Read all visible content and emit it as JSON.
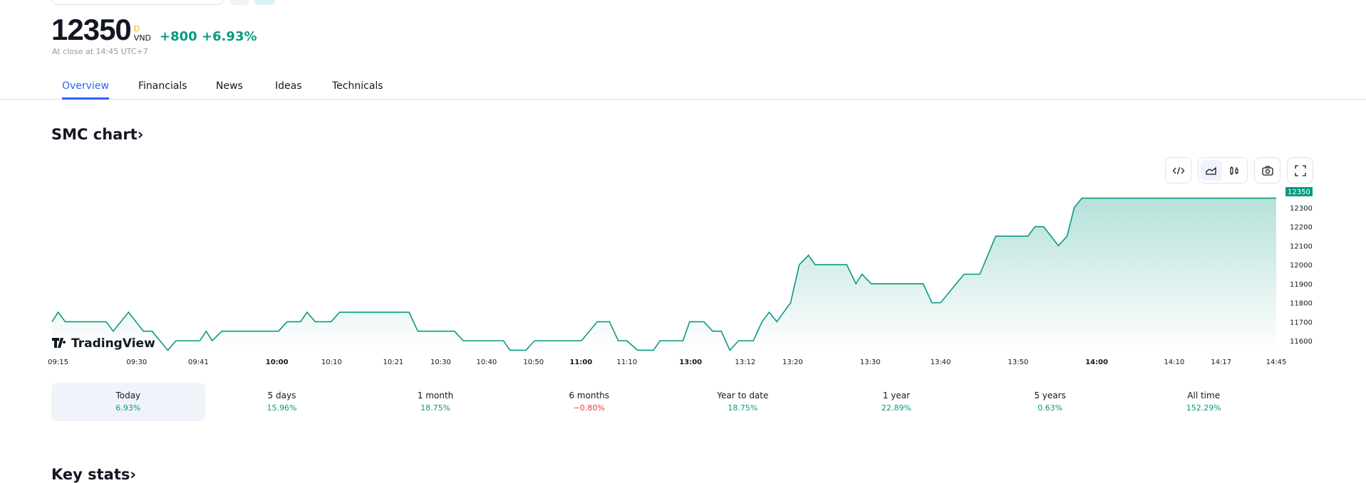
{
  "quote": {
    "price": "12350",
    "flag": "D",
    "currency": "VND",
    "change": "+800",
    "change_pct": "+6.93%",
    "status": "At close at 14:45 UTC+7"
  },
  "tabs": [
    {
      "label": "Overview",
      "active": true
    },
    {
      "label": "Financials"
    },
    {
      "label": "News"
    },
    {
      "label": "Ideas"
    },
    {
      "label": "Technicals"
    }
  ],
  "section_title": "SMC chart›",
  "toolbar": {
    "embed": "code-icon",
    "area": "area-chart-icon",
    "candles": "candlestick-icon",
    "snapshot": "camera-icon",
    "fullscreen": "fullscreen-icon"
  },
  "watermark": "TradingView",
  "colors": {
    "up": "#089981",
    "down": "#f23645",
    "accent": "#2962ff"
  },
  "chart_data": {
    "type": "area",
    "last_price_label": "12350",
    "y_ticks": [
      11600,
      11700,
      11800,
      11900,
      12000,
      12100,
      12200,
      12300
    ],
    "ylim": [
      11550,
      12350
    ],
    "xlim": [
      0,
      240
    ],
    "t": [
      0,
      1.2,
      2.6,
      10.6,
      12.0,
      15.0,
      17.9,
      19.6,
      22.7,
      24.3,
      29.0,
      30.2,
      31.4,
      33.3,
      44.4,
      46.1,
      48.7,
      50.0,
      51.6,
      54.7,
      56.4,
      70.0,
      71.7,
      78.9,
      80.6,
      88.5,
      89.8,
      92.9,
      94.6,
      103.8,
      106.9,
      109.3,
      111.0,
      112.7,
      114.8,
      117.9,
      119.2,
      123.7,
      125.0,
      127.8,
      129.5,
      131.2,
      132.9,
      134.6,
      137.5,
      139.2,
      140.6,
      142.1,
      144.8,
      146.5,
      148.3,
      149.6,
      155.8,
      157.6,
      158.8,
      160.6,
      170.8,
      172.5,
      174.2,
      178.8,
      181.9,
      185.0,
      191.3,
      192.7,
      194.4,
      197.3,
      199.0,
      200.4,
      201.9,
      240
    ],
    "price": [
      11700,
      11750,
      11700,
      11700,
      11650,
      11750,
      11650,
      11650,
      11550,
      11600,
      11600,
      11650,
      11600,
      11650,
      11650,
      11700,
      11700,
      11750,
      11700,
      11700,
      11750,
      11750,
      11650,
      11650,
      11600,
      11600,
      11550,
      11550,
      11600,
      11600,
      11700,
      11700,
      11600,
      11600,
      11550,
      11550,
      11600,
      11600,
      11700,
      11700,
      11650,
      11650,
      11550,
      11600,
      11600,
      11700,
      11750,
      11700,
      11800,
      12000,
      12050,
      12000,
      12000,
      11900,
      11950,
      11900,
      11900,
      11800,
      11800,
      11950,
      11950,
      12150,
      12150,
      12200,
      12200,
      12100,
      12150,
      12300,
      12350,
      12350
    ],
    "x_ticks": [
      {
        "t": 1.2,
        "label": "09:15"
      },
      {
        "t": 16.6,
        "label": "09:30"
      },
      {
        "t": 28.7,
        "label": "09:41"
      },
      {
        "t": 44.1,
        "label": "10:00",
        "bold": true
      },
      {
        "t": 54.8,
        "label": "10:10"
      },
      {
        "t": 66.9,
        "label": "10:21"
      },
      {
        "t": 76.2,
        "label": "10:30"
      },
      {
        "t": 85.2,
        "label": "10:40"
      },
      {
        "t": 94.4,
        "label": "10:50"
      },
      {
        "t": 103.7,
        "label": "11:00",
        "bold": true
      },
      {
        "t": 112.7,
        "label": "11:10"
      },
      {
        "t": 125.2,
        "label": "13:00",
        "bold": true
      },
      {
        "t": 135.9,
        "label": "13:12"
      },
      {
        "t": 145.2,
        "label": "13:20"
      },
      {
        "t": 160.4,
        "label": "13:30"
      },
      {
        "t": 174.2,
        "label": "13:40"
      },
      {
        "t": 189.4,
        "label": "13:50"
      },
      {
        "t": 204.8,
        "label": "14:00",
        "bold": true
      },
      {
        "t": 220.0,
        "label": "14:10"
      },
      {
        "t": 229.2,
        "label": "14:17"
      },
      {
        "t": 240,
        "label": "14:45"
      }
    ]
  },
  "periods": [
    {
      "label": "Today",
      "value": "6.93%",
      "dir": "up",
      "active": true
    },
    {
      "label": "5 days",
      "value": "15.96%",
      "dir": "up"
    },
    {
      "label": "1 month",
      "value": "18.75%",
      "dir": "up"
    },
    {
      "label": "6 months",
      "value": "−0.80%",
      "dir": "down"
    },
    {
      "label": "Year to date",
      "value": "18.75%",
      "dir": "up"
    },
    {
      "label": "1 year",
      "value": "22.89%",
      "dir": "up"
    },
    {
      "label": "5 years",
      "value": "0.63%",
      "dir": "up"
    },
    {
      "label": "All time",
      "value": "152.29%",
      "dir": "up"
    }
  ],
  "next_section": "Key stats›"
}
